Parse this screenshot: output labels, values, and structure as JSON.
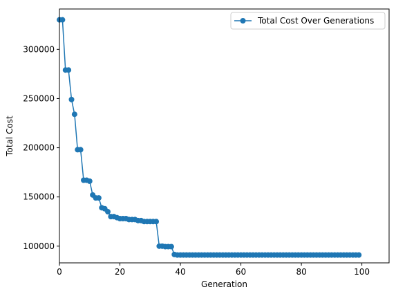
{
  "chart_data": {
    "type": "line",
    "xlabel": "Generation",
    "ylabel": "Total Cost",
    "xlim": [
      0,
      109
    ],
    "ylim": [
      83000,
      341000
    ],
    "xticks": [
      0,
      20,
      40,
      60,
      80,
      100
    ],
    "yticks": [
      100000,
      150000,
      200000,
      250000,
      300000
    ],
    "xtick_labels": [
      "0",
      "20",
      "40",
      "60",
      "80",
      "100"
    ],
    "ytick_labels": [
      "100000",
      "150000",
      "200000",
      "250000",
      "300000"
    ],
    "grid": false,
    "legend_position": "upper right",
    "color": "#1f77b4",
    "series": [
      {
        "name": "Total Cost Over Generations",
        "marker": "circle",
        "x": [
          0,
          1,
          2,
          3,
          4,
          5,
          6,
          7,
          8,
          9,
          10,
          11,
          12,
          13,
          14,
          15,
          16,
          17,
          18,
          19,
          20,
          21,
          22,
          23,
          24,
          25,
          26,
          27,
          28,
          29,
          30,
          31,
          32,
          33,
          34,
          35,
          36,
          37,
          38,
          39,
          40,
          41,
          42,
          43,
          44,
          45,
          46,
          47,
          48,
          49,
          50,
          51,
          52,
          53,
          54,
          55,
          56,
          57,
          58,
          59,
          60,
          61,
          62,
          63,
          64,
          65,
          66,
          67,
          68,
          69,
          70,
          71,
          72,
          73,
          74,
          75,
          76,
          77,
          78,
          79,
          80,
          81,
          82,
          83,
          84,
          85,
          86,
          87,
          88,
          89,
          90,
          91,
          92,
          93,
          94,
          95,
          96,
          97,
          98,
          99
        ],
        "values": [
          330000,
          330000,
          279000,
          279000,
          249000,
          234000,
          198000,
          198000,
          167000,
          167000,
          166000,
          152000,
          149000,
          149000,
          139000,
          138000,
          135000,
          130000,
          130000,
          129000,
          128000,
          128000,
          128000,
          127000,
          127000,
          127000,
          126000,
          126000,
          125000,
          125000,
          125000,
          125000,
          125000,
          100000,
          100000,
          99500,
          99500,
          99500,
          91500,
          91000,
          91000,
          91000,
          91000,
          91000,
          91000,
          91000,
          91000,
          91000,
          91000,
          91000,
          91000,
          91000,
          91000,
          91000,
          91000,
          91000,
          91000,
          91000,
          91000,
          91000,
          91000,
          91000,
          91000,
          91000,
          91000,
          91000,
          91000,
          91000,
          91000,
          91000,
          91000,
          91000,
          91000,
          91000,
          91000,
          91000,
          91000,
          91000,
          91000,
          91000,
          91000,
          91000,
          91000,
          91000,
          91000,
          91000,
          91000,
          91000,
          91000,
          91000,
          91000,
          91000,
          91000,
          91000,
          91000,
          91000,
          91000,
          91000,
          91000,
          91000
        ]
      }
    ]
  }
}
